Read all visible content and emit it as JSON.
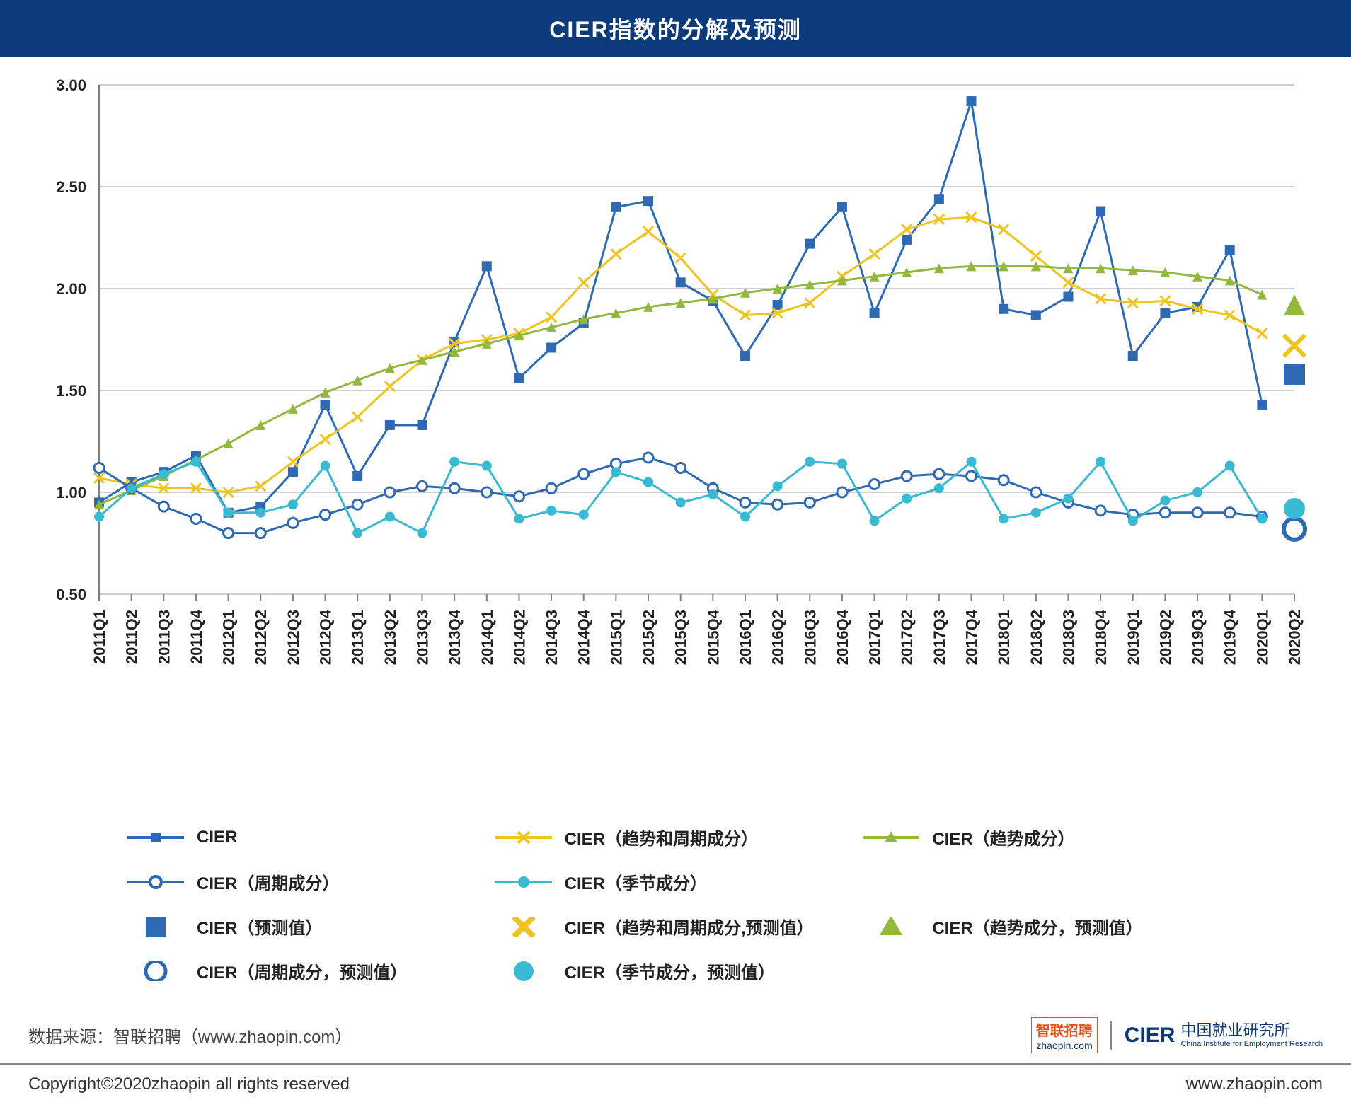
{
  "title": "CIER指数的分解及预测",
  "chart": {
    "type": "line",
    "background_color": "#ffffff",
    "grid_color": "#bfbfbf",
    "axis_color": "#808080",
    "ylim": [
      0.5,
      3.0
    ],
    "ytick_step": 0.5,
    "yticks": [
      "0.50",
      "1.00",
      "1.50",
      "2.00",
      "2.50",
      "3.00"
    ],
    "tick_fontsize": 22,
    "xlabel_fontsize": 22,
    "xlabels": [
      "2011Q1",
      "2011Q2",
      "2011Q3",
      "2011Q4",
      "2012Q1",
      "2012Q2",
      "2012Q3",
      "2012Q4",
      "2013Q1",
      "2013Q2",
      "2013Q3",
      "2013Q4",
      "2014Q1",
      "2014Q2",
      "2014Q3",
      "2014Q4",
      "2015Q1",
      "2015Q2",
      "2015Q3",
      "2015Q4",
      "2016Q1",
      "2016Q2",
      "2016Q3",
      "2016Q4",
      "2017Q1",
      "2017Q2",
      "2017Q3",
      "2017Q4",
      "2018Q1",
      "2018Q2",
      "2018Q3",
      "2018Q4",
      "2019Q1",
      "2019Q2",
      "2019Q3",
      "2019Q4",
      "2020Q1",
      "2020Q2"
    ],
    "forecast_index": 37,
    "series": [
      {
        "key": "cier",
        "label": "CIER",
        "color": "#2e6ab3",
        "marker": "square-filled",
        "line_width": 3,
        "values": [
          0.95,
          1.05,
          1.1,
          1.18,
          0.9,
          0.93,
          1.1,
          1.43,
          1.08,
          1.33,
          1.33,
          1.74,
          2.11,
          1.56,
          1.71,
          1.83,
          2.4,
          2.43,
          2.03,
          1.94,
          1.67,
          1.92,
          2.22,
          2.4,
          1.88,
          2.24,
          2.44,
          2.92,
          1.9,
          1.87,
          1.96,
          2.38,
          1.67,
          1.88,
          1.91,
          2.19,
          1.43,
          1.58
        ]
      },
      {
        "key": "trend_cycle",
        "label": "CIER（趋势和周期成分）",
        "color": "#f0c420",
        "marker": "x",
        "line_width": 3,
        "values": [
          1.07,
          1.04,
          1.02,
          1.02,
          1.0,
          1.03,
          1.15,
          1.26,
          1.37,
          1.52,
          1.65,
          1.73,
          1.75,
          1.78,
          1.86,
          2.03,
          2.17,
          2.28,
          2.15,
          1.97,
          1.87,
          1.88,
          1.93,
          2.06,
          2.17,
          2.29,
          2.34,
          2.35,
          2.29,
          2.16,
          2.03,
          1.95,
          1.93,
          1.94,
          1.9,
          1.87,
          1.78,
          1.72
        ]
      },
      {
        "key": "trend",
        "label": "CIER（趋势成分）",
        "color": "#92b93e",
        "marker": "triangle-filled",
        "line_width": 3,
        "values": [
          0.94,
          1.01,
          1.08,
          1.16,
          1.24,
          1.33,
          1.41,
          1.49,
          1.55,
          1.61,
          1.65,
          1.69,
          1.73,
          1.77,
          1.81,
          1.85,
          1.88,
          1.91,
          1.93,
          1.95,
          1.98,
          2.0,
          2.02,
          2.04,
          2.06,
          2.08,
          2.1,
          2.11,
          2.11,
          2.11,
          2.1,
          2.1,
          2.09,
          2.08,
          2.06,
          2.04,
          1.97,
          1.92
        ]
      },
      {
        "key": "cycle",
        "label": "CIER（周期成分）",
        "color": "#2e6ab3",
        "marker": "circle-open",
        "line_width": 3,
        "values": [
          1.12,
          1.02,
          0.93,
          0.87,
          0.8,
          0.8,
          0.85,
          0.89,
          0.94,
          1.0,
          1.03,
          1.02,
          1.0,
          0.98,
          1.02,
          1.09,
          1.14,
          1.17,
          1.12,
          1.02,
          0.95,
          0.94,
          0.95,
          1.0,
          1.04,
          1.08,
          1.09,
          1.08,
          1.06,
          1.0,
          0.95,
          0.91,
          0.89,
          0.9,
          0.9,
          0.9,
          0.88,
          0.82
        ]
      },
      {
        "key": "season",
        "label": "CIER（季节成分）",
        "color": "#38bad3",
        "marker": "circle-filled",
        "line_width": 3,
        "values": [
          0.88,
          1.02,
          1.09,
          1.15,
          0.9,
          0.9,
          0.94,
          1.13,
          0.8,
          0.88,
          0.8,
          1.15,
          1.13,
          0.87,
          0.91,
          0.89,
          1.1,
          1.05,
          0.95,
          0.99,
          0.88,
          1.03,
          1.15,
          1.14,
          0.86,
          0.97,
          1.02,
          1.15,
          0.87,
          0.9,
          0.97,
          1.15,
          0.86,
          0.96,
          1.0,
          1.13,
          0.87,
          0.92
        ]
      }
    ],
    "legend_items": [
      {
        "label": "CIER",
        "color": "#2e6ab3",
        "symbol": "line-square-filled"
      },
      {
        "label": "CIER（趋势和周期成分）",
        "color": "#f0c420",
        "symbol": "line-x"
      },
      {
        "label": "CIER（趋势成分）",
        "color": "#92b93e",
        "symbol": "line-triangle-filled"
      },
      {
        "label": "CIER（周期成分）",
        "color": "#2e6ab3",
        "symbol": "line-circle-open"
      },
      {
        "label": "CIER（季节成分）",
        "color": "#38bad3",
        "symbol": "line-circle-filled"
      },
      {
        "label": "",
        "color": "",
        "symbol": "blank"
      },
      {
        "label": "CIER（预测值）",
        "color": "#2e6ab3",
        "symbol": "big-square"
      },
      {
        "label": "CIER（趋势和周期成分,预测值）",
        "color": "#f0c420",
        "symbol": "big-x"
      },
      {
        "label": "CIER（趋势成分，预测值）",
        "color": "#92b93e",
        "symbol": "big-triangle"
      },
      {
        "label": "CIER（周期成分，预测值）",
        "color": "#2e6ab3",
        "symbol": "big-circle-open"
      },
      {
        "label": "CIER（季节成分，预测值）",
        "color": "#38bad3",
        "symbol": "big-circle-filled"
      }
    ]
  },
  "source_label": "数据来源：智联招聘（www.zhaopin.com）",
  "zhaopin_logo_top": "智联招聘",
  "zhaopin_logo_bottom": "zhaopin.com",
  "cier_logo": "CIER",
  "cier_cn": "中国就业研究所",
  "cier_en": "China Institute for Employment Research",
  "copyright": "Copyright©2020zhaopin all rights reserved",
  "site": "www.zhaopin.com"
}
